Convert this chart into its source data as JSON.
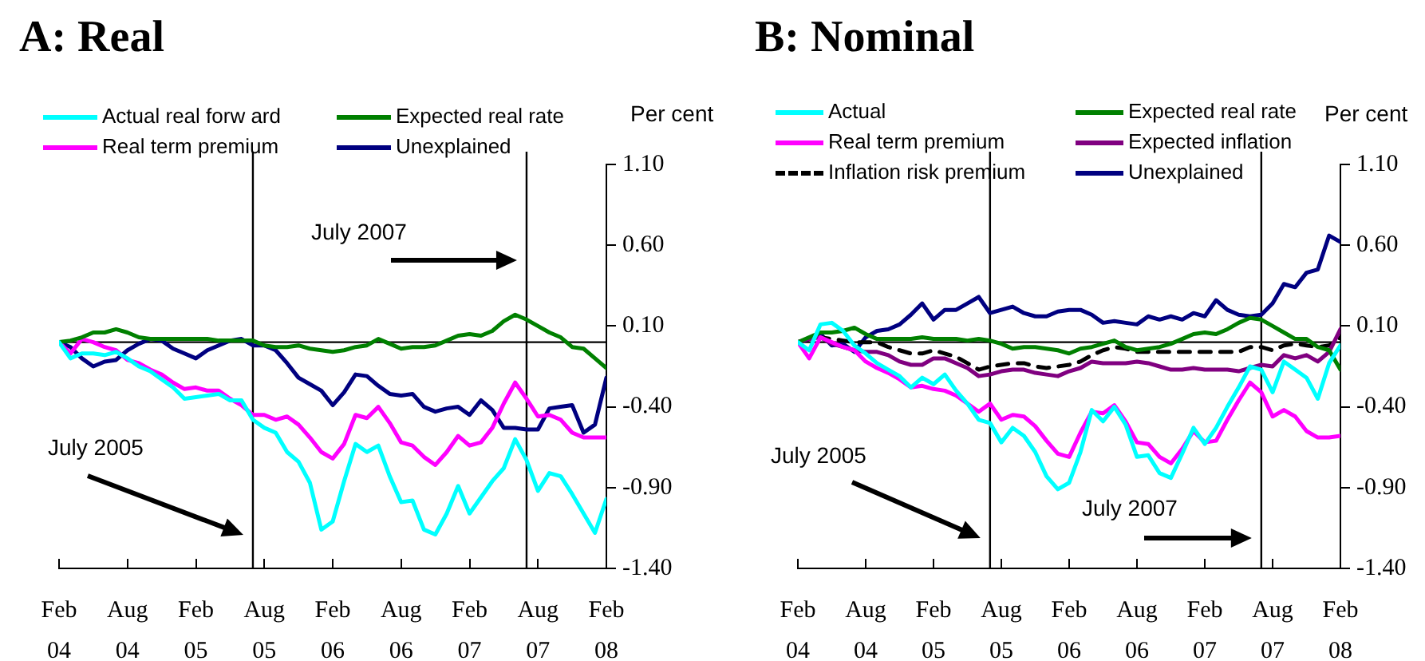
{
  "chart_data": [
    {
      "type": "line",
      "title": "A: Real",
      "ylabel": "Per cent",
      "x": [
        "2004-02",
        "2004-03",
        "2004-04",
        "2004-05",
        "2004-06",
        "2004-07",
        "2004-08",
        "2004-09",
        "2004-10",
        "2004-11",
        "2004-12",
        "2005-01",
        "2005-02",
        "2005-03",
        "2005-04",
        "2005-05",
        "2005-06",
        "2005-07",
        "2005-08",
        "2005-09",
        "2005-10",
        "2005-11",
        "2005-12",
        "2006-01",
        "2006-02",
        "2006-03",
        "2006-04",
        "2006-05",
        "2006-06",
        "2006-07",
        "2006-08",
        "2006-09",
        "2006-10",
        "2006-11",
        "2006-12",
        "2007-01",
        "2007-02",
        "2007-03",
        "2007-04",
        "2007-05",
        "2007-06",
        "2007-07",
        "2007-08",
        "2007-09",
        "2007-10",
        "2007-11",
        "2007-12",
        "2008-01",
        "2008-02"
      ],
      "series": [
        {
          "name": "Actual real forw ard",
          "color": "#00ffff",
          "values": [
            0,
            -0.1,
            -0.07,
            -0.07,
            -0.08,
            -0.06,
            -0.1,
            -0.15,
            -0.18,
            -0.23,
            -0.28,
            -0.35,
            -0.34,
            -0.33,
            -0.32,
            -0.36,
            -0.36,
            -0.48,
            -0.53,
            -0.56,
            -0.68,
            -0.74,
            -0.87,
            -1.16,
            -1.11,
            -0.86,
            -0.63,
            -0.68,
            -0.64,
            -0.83,
            -0.99,
            -0.98,
            -1.16,
            -1.19,
            -1.06,
            -0.89,
            -1.06,
            -0.96,
            -0.86,
            -0.78,
            -0.6,
            -0.73,
            -0.92,
            -0.81,
            -0.83,
            -0.94,
            -1.06,
            -1.18,
            -0.97
          ]
        },
        {
          "name": "Expected real rate",
          "color": "#008000",
          "values": [
            0,
            0.01,
            0.03,
            0.06,
            0.06,
            0.08,
            0.06,
            0.03,
            0.02,
            0.02,
            0.02,
            0.02,
            0.02,
            0.02,
            0.01,
            0.01,
            0.01,
            0.01,
            -0.02,
            -0.03,
            -0.03,
            -0.02,
            -0.04,
            -0.05,
            -0.06,
            -0.05,
            -0.03,
            -0.02,
            0.02,
            -0.01,
            -0.04,
            -0.03,
            -0.03,
            -0.02,
            0.01,
            0.04,
            0.05,
            0.04,
            0.07,
            0.13,
            0.17,
            0.14,
            0.1,
            0.06,
            0.03,
            -0.03,
            -0.04,
            -0.1,
            -0.16
          ]
        },
        {
          "name": "Real term premium",
          "color": "#ff00ff",
          "values": [
            0,
            -0.07,
            0.02,
            0,
            -0.03,
            -0.05,
            -0.11,
            -0.13,
            -0.17,
            -0.2,
            -0.25,
            -0.29,
            -0.28,
            -0.3,
            -0.3,
            -0.35,
            -0.39,
            -0.45,
            -0.45,
            -0.48,
            -0.46,
            -0.51,
            -0.59,
            -0.68,
            -0.72,
            -0.63,
            -0.45,
            -0.47,
            -0.4,
            -0.5,
            -0.62,
            -0.64,
            -0.71,
            -0.76,
            -0.68,
            -0.58,
            -0.64,
            -0.62,
            -0.53,
            -0.38,
            -0.25,
            -0.35,
            -0.46,
            -0.45,
            -0.48,
            -0.56,
            -0.59,
            -0.59,
            -0.59
          ]
        },
        {
          "name": "Unexplained",
          "color": "#000080",
          "values": [
            0,
            -0.03,
            -0.1,
            -0.15,
            -0.12,
            -0.11,
            -0.05,
            -0.01,
            0.02,
            0.01,
            -0.04,
            -0.07,
            -0.1,
            -0.05,
            -0.02,
            0.01,
            0.02,
            -0.02,
            -0.02,
            -0.05,
            -0.13,
            -0.22,
            -0.26,
            -0.3,
            -0.39,
            -0.31,
            -0.2,
            -0.21,
            -0.27,
            -0.32,
            -0.33,
            -0.32,
            -0.4,
            -0.43,
            -0.41,
            -0.4,
            -0.45,
            -0.36,
            -0.42,
            -0.53,
            -0.53,
            -0.54,
            -0.54,
            -0.41,
            -0.4,
            -0.39,
            -0.56,
            -0.51,
            -0.22
          ]
        }
      ],
      "xlim": [
        "2004-02",
        "2008-02"
      ],
      "xticks": [
        {
          "value": "2004-02",
          "label": "Feb 04"
        },
        {
          "value": "2004-08",
          "label": "Aug 04"
        },
        {
          "value": "2005-02",
          "label": "Feb 05"
        },
        {
          "value": "2005-08",
          "label": "Aug 05"
        },
        {
          "value": "2006-02",
          "label": "Feb 06"
        },
        {
          "value": "2006-08",
          "label": "Aug 06"
        },
        {
          "value": "2007-02",
          "label": "Feb 07"
        },
        {
          "value": "2007-08",
          "label": "Aug 07"
        },
        {
          "value": "2008-02",
          "label": "Feb 08"
        }
      ],
      "ylim": [
        -1.4,
        1.1
      ],
      "yticks": [
        {
          "value": -1.4,
          "label": "-1.40"
        },
        {
          "value": -0.9,
          "label": "-0.90"
        },
        {
          "value": -0.4,
          "label": "-0.40"
        },
        {
          "value": 0.1,
          "label": "0.10"
        },
        {
          "value": 0.6,
          "label": "0.60"
        },
        {
          "value": 1.1,
          "label": "1.10"
        }
      ],
      "ref_lines": [
        {
          "axis": "y",
          "value": 0,
          "color": "#000000"
        },
        {
          "axis": "x",
          "value": "2005-07",
          "color": "#000000"
        },
        {
          "axis": "x",
          "value": "2007-07",
          "color": "#000000"
        }
      ],
      "annotations": [
        "July 2005",
        "July 2007"
      ],
      "grid": false,
      "legend": "top"
    },
    {
      "type": "line",
      "title": "B: Nominal",
      "ylabel": "Per cent",
      "x": [
        "2004-02",
        "2004-03",
        "2004-04",
        "2004-05",
        "2004-06",
        "2004-07",
        "2004-08",
        "2004-09",
        "2004-10",
        "2004-11",
        "2004-12",
        "2005-01",
        "2005-02",
        "2005-03",
        "2005-04",
        "2005-05",
        "2005-06",
        "2005-07",
        "2005-08",
        "2005-09",
        "2005-10",
        "2005-11",
        "2005-12",
        "2006-01",
        "2006-02",
        "2006-03",
        "2006-04",
        "2006-05",
        "2006-06",
        "2006-07",
        "2006-08",
        "2006-09",
        "2006-10",
        "2006-11",
        "2006-12",
        "2007-01",
        "2007-02",
        "2007-03",
        "2007-04",
        "2007-05",
        "2007-06",
        "2007-07",
        "2007-08",
        "2007-09",
        "2007-10",
        "2007-11",
        "2007-12",
        "2008-01",
        "2008-02"
      ],
      "series": [
        {
          "name": "Actual",
          "color": "#00ffff",
          "values": [
            0,
            -0.05,
            0.11,
            0.12,
            0.07,
            -0.02,
            -0.07,
            -0.13,
            -0.17,
            -0.21,
            -0.28,
            -0.22,
            -0.26,
            -0.2,
            -0.3,
            -0.38,
            -0.48,
            -0.5,
            -0.62,
            -0.53,
            -0.58,
            -0.68,
            -0.83,
            -0.91,
            -0.87,
            -0.68,
            -0.42,
            -0.49,
            -0.4,
            -0.51,
            -0.71,
            -0.7,
            -0.81,
            -0.84,
            -0.69,
            -0.53,
            -0.63,
            -0.53,
            -0.4,
            -0.28,
            -0.15,
            -0.17,
            -0.31,
            -0.12,
            -0.17,
            -0.22,
            -0.35,
            -0.13,
            -0.02
          ]
        },
        {
          "name": "Expected real rate",
          "color": "#008000",
          "values": [
            0,
            0.03,
            0.06,
            0.06,
            0.07,
            0.09,
            0.05,
            0.02,
            0.02,
            0.02,
            0.02,
            0.03,
            0.02,
            0.02,
            0.02,
            0.01,
            0.02,
            0.01,
            -0.01,
            -0.04,
            -0.03,
            -0.03,
            -0.04,
            -0.05,
            -0.07,
            -0.04,
            -0.03,
            -0.01,
            0.01,
            -0.03,
            -0.05,
            -0.04,
            -0.03,
            -0.01,
            0.02,
            0.05,
            0.06,
            0.05,
            0.08,
            0.12,
            0.15,
            0.14,
            0.1,
            0.06,
            0.02,
            0.02,
            -0.03,
            -0.05,
            -0.17
          ]
        },
        {
          "name": "Real term premium",
          "color": "#ff00ff",
          "values": [
            0,
            -0.1,
            0.03,
            0,
            -0.03,
            -0.05,
            -0.12,
            -0.16,
            -0.19,
            -0.23,
            -0.28,
            -0.27,
            -0.29,
            -0.3,
            -0.33,
            -0.38,
            -0.43,
            -0.38,
            -0.48,
            -0.45,
            -0.46,
            -0.52,
            -0.61,
            -0.69,
            -0.71,
            -0.56,
            -0.43,
            -0.44,
            -0.39,
            -0.49,
            -0.62,
            -0.63,
            -0.71,
            -0.75,
            -0.66,
            -0.55,
            -0.62,
            -0.61,
            -0.48,
            -0.36,
            -0.25,
            -0.31,
            -0.46,
            -0.42,
            -0.46,
            -0.55,
            -0.59,
            -0.59,
            -0.58
          ]
        },
        {
          "name": "Expected inflation",
          "color": "#800080",
          "values": [
            0,
            0.02,
            0.03,
            -0.01,
            -0.03,
            -0.05,
            -0.06,
            -0.06,
            -0.08,
            -0.12,
            -0.14,
            -0.14,
            -0.1,
            -0.1,
            -0.13,
            -0.16,
            -0.21,
            -0.2,
            -0.18,
            -0.17,
            -0.17,
            -0.19,
            -0.2,
            -0.21,
            -0.18,
            -0.16,
            -0.12,
            -0.13,
            -0.13,
            -0.13,
            -0.12,
            -0.13,
            -0.15,
            -0.17,
            -0.17,
            -0.16,
            -0.17,
            -0.17,
            -0.17,
            -0.18,
            -0.16,
            -0.14,
            -0.15,
            -0.08,
            -0.1,
            -0.08,
            -0.12,
            -0.06,
            0.08
          ]
        },
        {
          "name": "Inflation risk premium",
          "color": "#000000",
          "line_style": "dashed",
          "values": [
            0,
            0.02,
            0.03,
            0.02,
            0.01,
            0,
            0,
            0,
            -0.03,
            -0.05,
            -0.07,
            -0.07,
            -0.05,
            -0.07,
            -0.09,
            -0.13,
            -0.17,
            -0.15,
            -0.14,
            -0.13,
            -0.13,
            -0.15,
            -0.16,
            -0.15,
            -0.14,
            -0.12,
            -0.08,
            -0.05,
            -0.03,
            -0.04,
            -0.06,
            -0.06,
            -0.06,
            -0.06,
            -0.06,
            -0.06,
            -0.06,
            -0.06,
            -0.06,
            -0.06,
            -0.03,
            -0.03,
            -0.05,
            -0.02,
            -0.01,
            -0.02,
            -0.03,
            -0.02,
            0.03
          ]
        },
        {
          "name": "Unexplained",
          "color": "#000080",
          "values": [
            0,
            0.02,
            0.05,
            -0.02,
            -0.01,
            -0.06,
            0.03,
            0.07,
            0.08,
            0.11,
            0.17,
            0.24,
            0.14,
            0.2,
            0.2,
            0.24,
            0.28,
            0.18,
            0.2,
            0.22,
            0.18,
            0.16,
            0.16,
            0.19,
            0.2,
            0.2,
            0.17,
            0.12,
            0.13,
            0.12,
            0.11,
            0.16,
            0.14,
            0.16,
            0.14,
            0.18,
            0.16,
            0.26,
            0.2,
            0.17,
            0.16,
            0.17,
            0.24,
            0.36,
            0.34,
            0.43,
            0.45,
            0.66,
            0.62
          ]
        }
      ],
      "xlim": [
        "2004-02",
        "2008-02"
      ],
      "xticks": [
        {
          "value": "2004-02",
          "label": "Feb 04"
        },
        {
          "value": "2004-08",
          "label": "Aug 04"
        },
        {
          "value": "2005-02",
          "label": "Feb 05"
        },
        {
          "value": "2005-08",
          "label": "Aug 05"
        },
        {
          "value": "2006-02",
          "label": "Feb 06"
        },
        {
          "value": "2006-08",
          "label": "Aug 06"
        },
        {
          "value": "2007-02",
          "label": "Feb 07"
        },
        {
          "value": "2007-08",
          "label": "Aug 07"
        },
        {
          "value": "2008-02",
          "label": "Feb 08"
        }
      ],
      "ylim": [
        -1.4,
        1.1
      ],
      "yticks": [
        {
          "value": -1.4,
          "label": "-1.40"
        },
        {
          "value": -0.9,
          "label": "-0.90"
        },
        {
          "value": -0.4,
          "label": "-0.40"
        },
        {
          "value": 0.1,
          "label": "0.10"
        },
        {
          "value": 0.6,
          "label": "0.60"
        },
        {
          "value": 1.1,
          "label": "1.10"
        }
      ],
      "ref_lines": [
        {
          "axis": "y",
          "value": 0,
          "color": "#000000"
        },
        {
          "axis": "x",
          "value": "2005-07",
          "color": "#000000"
        },
        {
          "axis": "x",
          "value": "2007-07",
          "color": "#000000"
        }
      ],
      "annotations": [
        "July 2005",
        "July 2007"
      ],
      "grid": false,
      "legend": "top"
    }
  ]
}
